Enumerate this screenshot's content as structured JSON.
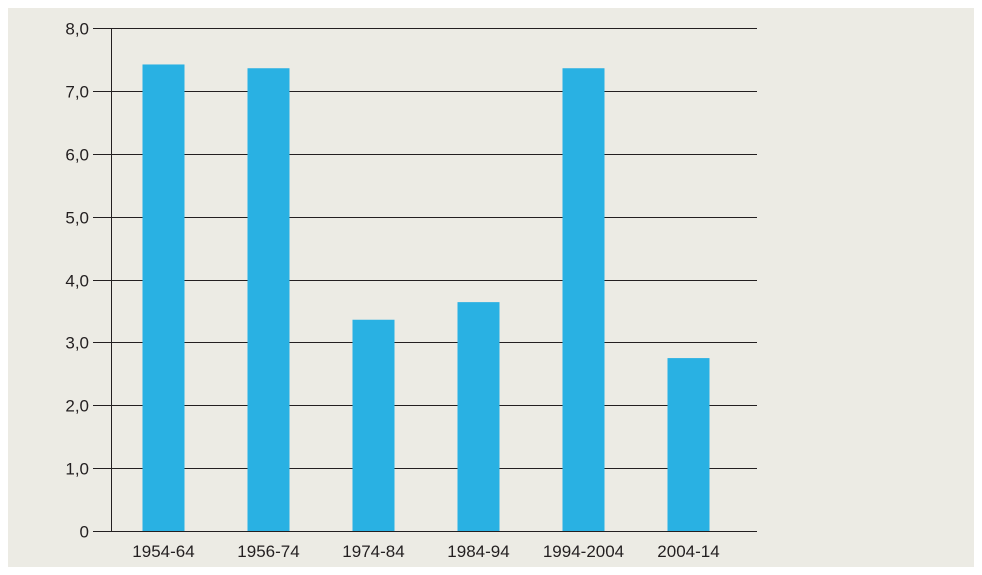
{
  "colors": {
    "background": "#ecebe4",
    "bar": "#29b1e3",
    "gridline": "#231f20",
    "text": "#231f20"
  },
  "chart_data": {
    "type": "bar",
    "categories": [
      "1954-64",
      "1956-74",
      "1974-84",
      "1984-94",
      "1994-2004",
      "2004-14"
    ],
    "values": [
      7.42,
      7.36,
      3.36,
      3.64,
      7.36,
      2.75
    ],
    "ylim": [
      0,
      8
    ],
    "yticks": [
      0,
      1,
      2,
      3,
      4,
      5,
      6,
      7,
      8
    ],
    "ytick_labels": [
      "0",
      "1,0",
      "2,0",
      "3,0",
      "4,0",
      "5,0",
      "6,0",
      "7,0",
      "8,0"
    ],
    "grid": true,
    "title": "",
    "xlabel": "",
    "ylabel": "",
    "legend": "none"
  }
}
